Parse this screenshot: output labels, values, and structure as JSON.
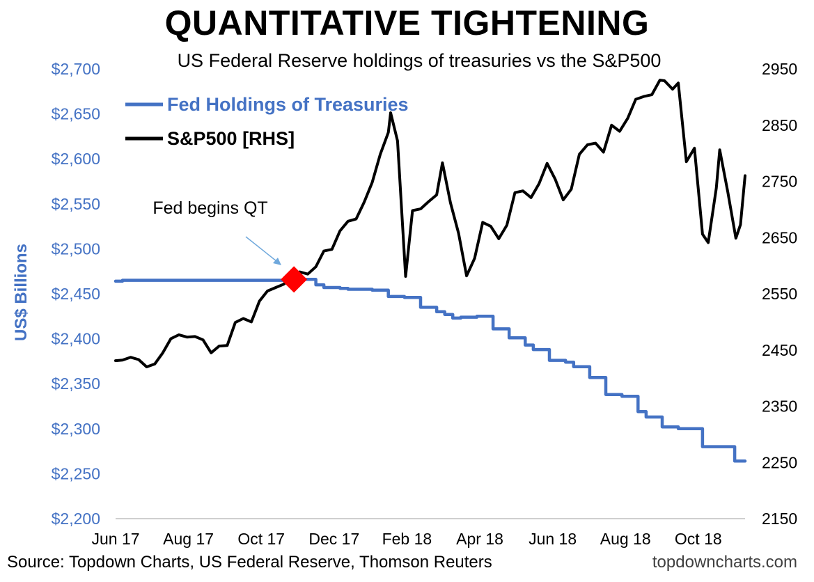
{
  "title": "QUANTITATIVE TIGHTENING",
  "subtitle": "US Federal Reserve holdings of treasuries vs the S&P500",
  "source": "Source: Topdown Charts, US Federal Reserve, Thomson Reuters",
  "brand": "topdowncharts.com",
  "chart_data": {
    "type": "line",
    "x_axis": {
      "tick_labels": [
        "Jun 17",
        "Aug 17",
        "Oct 17",
        "Dec 17",
        "Feb 18",
        "Apr 18",
        "Jun 18",
        "Aug 18",
        "Oct 18"
      ],
      "range": [
        "2017-06-01",
        "2018-11-30"
      ]
    },
    "y_left": {
      "label": "US$ Billions",
      "range": [
        2200,
        2700
      ],
      "ticks": [
        2200,
        2250,
        2300,
        2350,
        2400,
        2450,
        2500,
        2550,
        2600,
        2650,
        2700
      ],
      "tick_labels": [
        "$2,200",
        "$2,250",
        "$2,300",
        "$2,350",
        "$2,400",
        "$2,450",
        "$2,500",
        "$2,550",
        "$2,600",
        "$2,650",
        "$2,700"
      ],
      "color": "#4472C4"
    },
    "y_right": {
      "range": [
        2150,
        2950
      ],
      "ticks": [
        2150,
        2250,
        2350,
        2450,
        2550,
        2650,
        2750,
        2850,
        2950
      ],
      "tick_labels": [
        "2150",
        "2250",
        "2350",
        "2450",
        "2550",
        "2650",
        "2750",
        "2850",
        "2950"
      ]
    },
    "grid": false,
    "legend_position": "top-left",
    "series": [
      {
        "name": "Fed Holdings of Treasuries",
        "axis": "left",
        "color": "#4472C4",
        "step": true,
        "points": [
          [
            "2017-06-01",
            2464
          ],
          [
            "2017-06-07",
            2465
          ],
          [
            "2017-11-01",
            2465
          ],
          [
            "2017-11-10",
            2466
          ],
          [
            "2017-11-22",
            2460
          ],
          [
            "2017-11-29",
            2457
          ],
          [
            "2017-12-13",
            2456
          ],
          [
            "2017-12-20",
            2455
          ],
          [
            "2018-01-10",
            2454
          ],
          [
            "2018-01-24",
            2447
          ],
          [
            "2018-02-07",
            2446
          ],
          [
            "2018-02-21",
            2435
          ],
          [
            "2018-03-07",
            2430
          ],
          [
            "2018-03-14",
            2427
          ],
          [
            "2018-03-21",
            2423
          ],
          [
            "2018-03-28",
            2424
          ],
          [
            "2018-04-11",
            2425
          ],
          [
            "2018-04-25",
            2411
          ],
          [
            "2018-05-09",
            2401
          ],
          [
            "2018-05-23",
            2393
          ],
          [
            "2018-05-30",
            2388
          ],
          [
            "2018-06-13",
            2376
          ],
          [
            "2018-06-27",
            2374
          ],
          [
            "2018-07-04",
            2369
          ],
          [
            "2018-07-18",
            2357
          ],
          [
            "2018-08-01",
            2338
          ],
          [
            "2018-08-15",
            2336
          ],
          [
            "2018-08-29",
            2319
          ],
          [
            "2018-09-05",
            2313
          ],
          [
            "2018-09-19",
            2302
          ],
          [
            "2018-10-03",
            2300
          ],
          [
            "2018-10-24",
            2280
          ],
          [
            "2018-11-14",
            2280
          ],
          [
            "2018-11-21",
            2264
          ],
          [
            "2018-11-30",
            2264
          ]
        ]
      },
      {
        "name": "S&P500 [RHS]",
        "axis": "right",
        "color": "#000000",
        "step": false,
        "points": [
          [
            "2017-06-01",
            2431
          ],
          [
            "2017-06-07",
            2432
          ],
          [
            "2017-06-14",
            2437
          ],
          [
            "2017-06-21",
            2433
          ],
          [
            "2017-06-28",
            2420
          ],
          [
            "2017-07-05",
            2425
          ],
          [
            "2017-07-12",
            2445
          ],
          [
            "2017-07-19",
            2470
          ],
          [
            "2017-07-26",
            2477
          ],
          [
            "2017-08-02",
            2473
          ],
          [
            "2017-08-09",
            2474
          ],
          [
            "2017-08-16",
            2468
          ],
          [
            "2017-08-23",
            2445
          ],
          [
            "2017-08-30",
            2457
          ],
          [
            "2017-09-06",
            2458
          ],
          [
            "2017-09-13",
            2499
          ],
          [
            "2017-09-20",
            2506
          ],
          [
            "2017-09-27",
            2500
          ],
          [
            "2017-10-04",
            2537
          ],
          [
            "2017-10-11",
            2555
          ],
          [
            "2017-10-18",
            2561
          ],
          [
            "2017-10-25",
            2567
          ],
          [
            "2017-11-01",
            2579
          ],
          [
            "2017-11-08",
            2589
          ],
          [
            "2017-11-15",
            2585
          ],
          [
            "2017-11-22",
            2598
          ],
          [
            "2017-11-29",
            2626
          ],
          [
            "2017-12-06",
            2629
          ],
          [
            "2017-12-13",
            2662
          ],
          [
            "2017-12-20",
            2679
          ],
          [
            "2017-12-27",
            2683
          ],
          [
            "2018-01-03",
            2713
          ],
          [
            "2018-01-10",
            2748
          ],
          [
            "2018-01-17",
            2798
          ],
          [
            "2018-01-24",
            2837
          ],
          [
            "2018-01-26",
            2872
          ],
          [
            "2018-02-01",
            2822
          ],
          [
            "2018-02-08",
            2581
          ],
          [
            "2018-02-14",
            2698
          ],
          [
            "2018-02-21",
            2701
          ],
          [
            "2018-02-28",
            2714
          ],
          [
            "2018-03-07",
            2726
          ],
          [
            "2018-03-12",
            2783
          ],
          [
            "2018-03-19",
            2712
          ],
          [
            "2018-03-26",
            2658
          ],
          [
            "2018-04-02",
            2582
          ],
          [
            "2018-04-09",
            2613
          ],
          [
            "2018-04-16",
            2677
          ],
          [
            "2018-04-23",
            2670
          ],
          [
            "2018-04-30",
            2648
          ],
          [
            "2018-05-07",
            2672
          ],
          [
            "2018-05-14",
            2730
          ],
          [
            "2018-05-21",
            2733
          ],
          [
            "2018-05-28",
            2721
          ],
          [
            "2018-06-04",
            2746
          ],
          [
            "2018-06-11",
            2782
          ],
          [
            "2018-06-18",
            2754
          ],
          [
            "2018-06-25",
            2717
          ],
          [
            "2018-07-02",
            2736
          ],
          [
            "2018-07-09",
            2798
          ],
          [
            "2018-07-16",
            2815
          ],
          [
            "2018-07-23",
            2818
          ],
          [
            "2018-07-30",
            2802
          ],
          [
            "2018-08-06",
            2850
          ],
          [
            "2018-08-13",
            2839
          ],
          [
            "2018-08-20",
            2862
          ],
          [
            "2018-08-27",
            2896
          ],
          [
            "2018-09-03",
            2901
          ],
          [
            "2018-09-10",
            2904
          ],
          [
            "2018-09-17",
            2930
          ],
          [
            "2018-09-21",
            2929
          ],
          [
            "2018-09-28",
            2914
          ],
          [
            "2018-10-03",
            2925
          ],
          [
            "2018-10-10",
            2785
          ],
          [
            "2018-10-17",
            2809
          ],
          [
            "2018-10-24",
            2656
          ],
          [
            "2018-10-29",
            2641
          ],
          [
            "2018-11-05",
            2738
          ],
          [
            "2018-11-08",
            2806
          ],
          [
            "2018-11-15",
            2731
          ],
          [
            "2018-11-22",
            2649
          ],
          [
            "2018-11-26",
            2673
          ],
          [
            "2018-11-30",
            2760
          ]
        ]
      }
    ],
    "annotations": [
      {
        "text": "Fed begins QT",
        "x": "2017-11-03",
        "series": "Fed Holdings of Treasuries",
        "y": 2466,
        "marker": "red-diamond"
      }
    ]
  }
}
